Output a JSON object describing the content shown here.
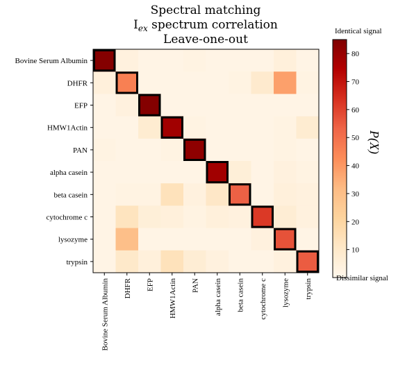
{
  "chart_data": {
    "type": "heatmap",
    "title": [
      "Spectral matching",
      "spectrum correlation",
      "Leave-one-out"
    ],
    "title_symbol": {
      "base": "I",
      "sub": "ex"
    },
    "row_labels": [
      "Bovine Serum Albumin",
      "DHFR",
      "EFP",
      "HMW1Actin",
      "PAN",
      "alpha casein",
      "beta casein",
      "cytochrome c",
      "lysozyme",
      "trypsin"
    ],
    "col_labels": [
      "Bovine Serum Albumin",
      "DHFR",
      "EFP",
      "HMW1Actin",
      "PAN",
      "alpha casein",
      "beta casein",
      "cytochrome c",
      "lysozyme",
      "trypsin"
    ],
    "values": [
      [
        84,
        4,
        2,
        2,
        3,
        2,
        2,
        2,
        5,
        2
      ],
      [
        5,
        46,
        2,
        2,
        2,
        2,
        3,
        9,
        38,
        3
      ],
      [
        2,
        4,
        84,
        2,
        2,
        2,
        2,
        2,
        2,
        2
      ],
      [
        2,
        2,
        8,
        78,
        3,
        2,
        2,
        2,
        3,
        8
      ],
      [
        3,
        2,
        2,
        3,
        82,
        2,
        2,
        2,
        3,
        2
      ],
      [
        2,
        2,
        2,
        2,
        2,
        78,
        6,
        2,
        4,
        3
      ],
      [
        2,
        3,
        3,
        14,
        4,
        11,
        54,
        2,
        5,
        4
      ],
      [
        2,
        13,
        6,
        5,
        3,
        5,
        4,
        62,
        7,
        4
      ],
      [
        2,
        30,
        2,
        2,
        2,
        2,
        2,
        4,
        57,
        2
      ],
      [
        2,
        10,
        5,
        14,
        7,
        4,
        2,
        2,
        4,
        55
      ]
    ],
    "highlight_diagonal": true,
    "colormap": "OrRd",
    "colorbar": {
      "ticks": [
        10,
        20,
        30,
        40,
        50,
        60,
        70,
        80
      ],
      "range": [
        0,
        85
      ],
      "label": "P(X)",
      "top_text": "Identical signal",
      "bottom_text": "Dissimilar signal"
    }
  }
}
